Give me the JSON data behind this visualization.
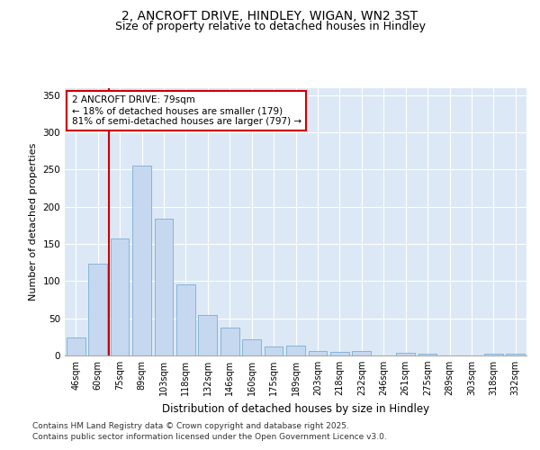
{
  "title": "2, ANCROFT DRIVE, HINDLEY, WIGAN, WN2 3ST",
  "subtitle": "Size of property relative to detached houses in Hindley",
  "xlabel": "Distribution of detached houses by size in Hindley",
  "ylabel": "Number of detached properties",
  "categories": [
    "46sqm",
    "60sqm",
    "75sqm",
    "89sqm",
    "103sqm",
    "118sqm",
    "132sqm",
    "146sqm",
    "160sqm",
    "175sqm",
    "189sqm",
    "203sqm",
    "218sqm",
    "232sqm",
    "246sqm",
    "261sqm",
    "275sqm",
    "289sqm",
    "303sqm",
    "318sqm",
    "332sqm"
  ],
  "values": [
    24,
    123,
    157,
    255,
    184,
    96,
    54,
    38,
    22,
    12,
    13,
    6,
    5,
    6,
    0,
    4,
    3,
    0,
    0,
    2,
    2
  ],
  "bar_color": "#c5d8f0",
  "bar_edge_color": "#7aadd4",
  "background_color": "#dce8f5",
  "grid_color": "#ffffff",
  "vline_x": 2.0,
  "vline_color": "#cc0000",
  "annotation_text": "2 ANCROFT DRIVE: 79sqm\n← 18% of detached houses are smaller (179)\n81% of semi-detached houses are larger (797) →",
  "annotation_box_facecolor": "#ffffff",
  "annotation_box_edgecolor": "#cc0000",
  "ylim": [
    0,
    360
  ],
  "yticks": [
    0,
    50,
    100,
    150,
    200,
    250,
    300,
    350
  ],
  "footnote1": "Contains HM Land Registry data © Crown copyright and database right 2025.",
  "footnote2": "Contains public sector information licensed under the Open Government Licence v3.0.",
  "title_fontsize": 10,
  "subtitle_fontsize": 9,
  "axis_label_fontsize": 8,
  "tick_fontsize": 7,
  "annotation_fontsize": 7.5,
  "footnote_fontsize": 6.5
}
